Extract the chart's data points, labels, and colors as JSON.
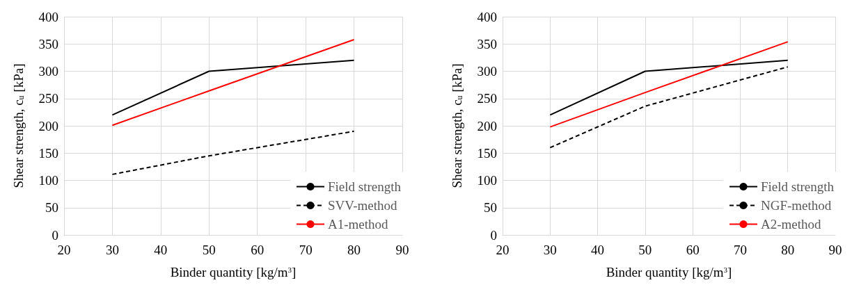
{
  "chart_data": [
    {
      "type": "line",
      "x": [
        30,
        50,
        80
      ],
      "xlabel": "Binder quantity [kg/m$^{3}$]",
      "ylabel": "Shear strength, c$_{u}$ [kPa]",
      "xlim": [
        20,
        90
      ],
      "xticks": [
        20,
        30,
        40,
        50,
        60,
        70,
        80,
        90
      ],
      "ylim": [
        0,
        400
      ],
      "yticks": [
        0,
        50,
        100,
        150,
        200,
        250,
        300,
        350,
        400
      ],
      "grid": true,
      "legend": "bottom right",
      "marker": "none",
      "series": [
        {
          "name": "Field strength",
          "color": "#000000",
          "values": [
            220,
            300,
            320
          ],
          "line_style": "solid"
        },
        {
          "name": "SVV-method",
          "color": "#000000",
          "values": [
            111,
            145,
            190
          ],
          "line_style": "dashed"
        },
        {
          "name": "A1-method",
          "color": "#ff0000",
          "values": [
            201,
            264,
            358
          ],
          "line_style": "solid"
        }
      ]
    },
    {
      "type": "line",
      "x": [
        30,
        50,
        80
      ],
      "xlabel": "Binder quantity [kg/m$^{3}$]",
      "ylabel": "Shear strength, c$_{u}$ [kPa]",
      "xlim": [
        20,
        90
      ],
      "xticks": [
        20,
        30,
        40,
        50,
        60,
        70,
        80,
        90
      ],
      "ylim": [
        0,
        400
      ],
      "yticks": [
        0,
        50,
        100,
        150,
        200,
        250,
        300,
        350,
        400
      ],
      "grid": true,
      "legend": "bottom right",
      "marker": "none",
      "series": [
        {
          "name": "Field strength",
          "color": "#000000",
          "values": [
            220,
            300,
            320
          ],
          "line_style": "solid"
        },
        {
          "name": "NGF-method",
          "color": "#000000",
          "values": [
            160,
            236,
            308
          ],
          "line_style": "dashed"
        },
        {
          "name": "A2-method",
          "color": "#ff0000",
          "values": [
            198,
            261,
            354
          ],
          "line_style": "solid"
        }
      ]
    }
  ]
}
